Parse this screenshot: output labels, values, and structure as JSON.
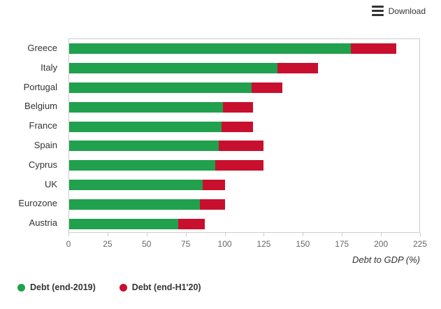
{
  "toolbar": {
    "download_label": "Download"
  },
  "chart_data": {
    "type": "bar",
    "orientation": "horizontal",
    "stacked": true,
    "title": "",
    "categories": [
      "Greece",
      "Italy",
      "Portugal",
      "Belgium",
      "France",
      "Spain",
      "Cyprus",
      "UK",
      "Eurozone",
      "Austria"
    ],
    "series": [
      {
        "name": "Debt (end-2019)",
        "color": "#21a04d",
        "values": [
          181,
          134,
          117,
          99,
          98,
          96,
          94,
          86,
          84,
          70
        ]
      },
      {
        "name": "Debt (end-H1'20)",
        "color": "#c8102e",
        "values": [
          29,
          26,
          20,
          19,
          20,
          29,
          31,
          14,
          16,
          17
        ]
      }
    ],
    "stack_totals": [
      210,
      160,
      137,
      118,
      118,
      125,
      125,
      100,
      100,
      87
    ],
    "xlabel": "Debt to GDP (%)",
    "xlim": [
      0,
      225
    ],
    "xticks": [
      0,
      25,
      50,
      75,
      100,
      125,
      150,
      175,
      200,
      225
    ],
    "grid": false,
    "legend_position": "bottom-left",
    "colors": {
      "green": "#21a04d",
      "red": "#c8102e"
    }
  }
}
